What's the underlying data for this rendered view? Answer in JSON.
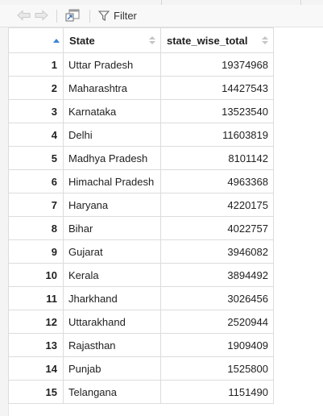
{
  "toolbar": {
    "back_icon": "back-arrow-icon",
    "forward_icon": "forward-arrow-icon",
    "popout_icon": "show-in-new-window-icon",
    "filter_icon": "funnel-icon",
    "filter_label": "Filter"
  },
  "table": {
    "columns": [
      "",
      "State",
      "state_wise_total"
    ],
    "sort_indicator": "ascending",
    "rows": [
      {
        "n": "1",
        "state": "Uttar Pradesh",
        "total": "19374968"
      },
      {
        "n": "2",
        "state": "Maharashtra",
        "total": "14427543"
      },
      {
        "n": "3",
        "state": "Karnataka",
        "total": "13523540"
      },
      {
        "n": "4",
        "state": "Delhi",
        "total": "11603819"
      },
      {
        "n": "5",
        "state": "Madhya Pradesh",
        "total": "8101142"
      },
      {
        "n": "6",
        "state": "Himachal Pradesh",
        "total": "4963368"
      },
      {
        "n": "7",
        "state": "Haryana",
        "total": "4220175"
      },
      {
        "n": "8",
        "state": "Bihar",
        "total": "4022757"
      },
      {
        "n": "9",
        "state": "Gujarat",
        "total": "3946082"
      },
      {
        "n": "10",
        "state": "Kerala",
        "total": "3894492"
      },
      {
        "n": "11",
        "state": "Jharkhand",
        "total": "3026456"
      },
      {
        "n": "12",
        "state": "Uttarakhand",
        "total": "2520944"
      },
      {
        "n": "13",
        "state": "Rajasthan",
        "total": "1909409"
      },
      {
        "n": "14",
        "state": "Punjab",
        "total": "1525800"
      },
      {
        "n": "15",
        "state": "Telangana",
        "total": "1151490"
      }
    ]
  },
  "colors": {
    "sort_active": "#3b84d8",
    "sort_inactive": "#c4c4c4",
    "border": "#dcdcdc"
  }
}
